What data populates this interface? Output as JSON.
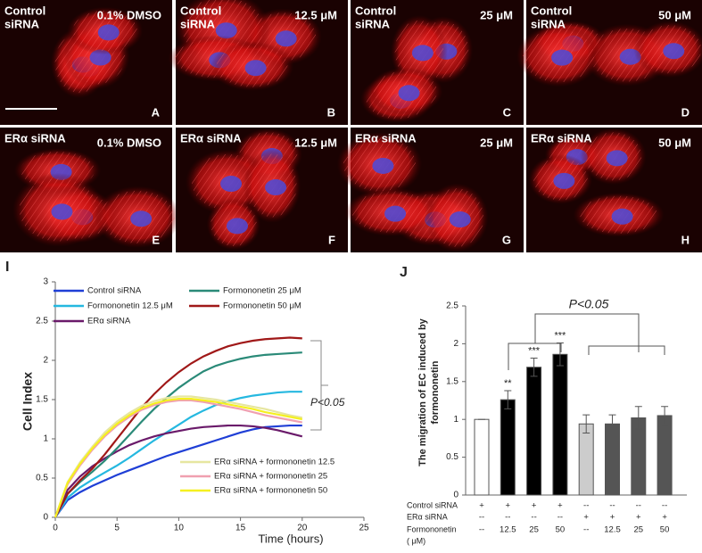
{
  "micrographs": [
    {
      "treatment": [
        "Control",
        "siRNA"
      ],
      "condition": "0.1% DMSO",
      "letter": "A"
    },
    {
      "treatment": [
        "Control",
        "siRNA"
      ],
      "condition": "12.5 μM",
      "letter": "B"
    },
    {
      "treatment": [
        "Control",
        "siRNA"
      ],
      "condition": "25 μM",
      "letter": "C"
    },
    {
      "treatment": [
        "Control",
        "siRNA"
      ],
      "condition": "50 μM",
      "letter": "D"
    },
    {
      "treatment": [
        "ERα siRNA"
      ],
      "condition": "0.1% DMSO",
      "letter": "E"
    },
    {
      "treatment": [
        "ERα siRNA"
      ],
      "condition": "12.5 μM",
      "letter": "F"
    },
    {
      "treatment": [
        "ERα siRNA"
      ],
      "condition": "25 μM",
      "letter": "G"
    },
    {
      "treatment": [
        "ERα siRNA"
      ],
      "condition": "50 μM",
      "letter": "H"
    }
  ],
  "chart_data": [
    {
      "type": "line",
      "panel": "I",
      "x_label": "Time (hours)",
      "y_label": "Cell Index",
      "annotation": "P<0.05",
      "x": [
        0,
        1,
        2,
        3,
        4,
        5,
        6,
        7,
        8,
        9,
        10,
        11,
        12,
        13,
        14,
        15,
        16,
        17,
        18,
        19,
        20
      ],
      "xlim": [
        0,
        25
      ],
      "xticks": [
        0,
        5,
        10,
        15,
        20,
        25
      ],
      "ylim": [
        0,
        3
      ],
      "yticks": [
        0,
        0.5,
        1,
        1.5,
        2,
        2.5,
        3
      ],
      "series": [
        {
          "name": "Control siRNA",
          "color": "#1f3fd6",
          "values": [
            0,
            0.22,
            0.32,
            0.4,
            0.47,
            0.54,
            0.6,
            0.66,
            0.72,
            0.78,
            0.83,
            0.88,
            0.93,
            0.98,
            1.03,
            1.08,
            1.12,
            1.15,
            1.16,
            1.17,
            1.17
          ]
        },
        {
          "name": "Formononetin 12.5  μM",
          "color": "#25b8e0",
          "values": [
            0,
            0.25,
            0.38,
            0.48,
            0.57,
            0.66,
            0.76,
            0.87,
            0.98,
            1.08,
            1.18,
            1.28,
            1.36,
            1.43,
            1.48,
            1.52,
            1.55,
            1.57,
            1.59,
            1.6,
            1.6
          ]
        },
        {
          "name": "ERα siRNA",
          "color": "#6a1a6a",
          "values": [
            0,
            0.35,
            0.52,
            0.65,
            0.75,
            0.84,
            0.92,
            0.98,
            1.03,
            1.07,
            1.1,
            1.13,
            1.15,
            1.16,
            1.17,
            1.17,
            1.16,
            1.14,
            1.11,
            1.07,
            1.03
          ]
        },
        {
          "name": "Formononetin 25  μM",
          "color": "#2a8a78",
          "values": [
            0,
            0.3,
            0.45,
            0.58,
            0.72,
            0.88,
            1.05,
            1.22,
            1.38,
            1.52,
            1.65,
            1.76,
            1.86,
            1.93,
            1.98,
            2.02,
            2.05,
            2.07,
            2.08,
            2.09,
            2.1
          ]
        },
        {
          "name": "Formononetin 50  μM",
          "color": "#a01818",
          "values": [
            0,
            0.3,
            0.47,
            0.62,
            0.8,
            1.0,
            1.2,
            1.4,
            1.57,
            1.72,
            1.85,
            1.96,
            2.05,
            2.12,
            2.18,
            2.22,
            2.25,
            2.27,
            2.28,
            2.29,
            2.28
          ]
        },
        {
          "name": "ERα siRNA + formononetin 12.5",
          "color": "#e6e6a0",
          "values": [
            0,
            0.45,
            0.7,
            0.9,
            1.08,
            1.22,
            1.33,
            1.42,
            1.48,
            1.52,
            1.54,
            1.54,
            1.52,
            1.5,
            1.47,
            1.44,
            1.41,
            1.38,
            1.34,
            1.3,
            1.27
          ]
        },
        {
          "name": "ERα siRNA + formononetin 25",
          "color": "#f0a0b0",
          "values": [
            0,
            0.42,
            0.66,
            0.86,
            1.03,
            1.17,
            1.28,
            1.37,
            1.43,
            1.47,
            1.49,
            1.49,
            1.47,
            1.44,
            1.41,
            1.38,
            1.34,
            1.3,
            1.27,
            1.24,
            1.21
          ]
        },
        {
          "name": "ERα siRNA + formononetin 50",
          "color": "#f5f020",
          "values": [
            0,
            0.44,
            0.68,
            0.88,
            1.05,
            1.19,
            1.3,
            1.39,
            1.45,
            1.49,
            1.51,
            1.51,
            1.49,
            1.47,
            1.44,
            1.41,
            1.38,
            1.34,
            1.31,
            1.28,
            1.25
          ]
        }
      ]
    },
    {
      "type": "bar",
      "panel": "J",
      "y_label": [
        "The migration of EC induced by",
        "formononetin"
      ],
      "annotation": "P<0.05",
      "values": [
        1,
        1.26,
        1.69,
        1.86,
        0.94,
        0.94,
        1.02,
        1.05
      ],
      "errors": [
        0,
        0.12,
        0.12,
        0.15,
        0.12,
        0.12,
        0.15,
        0.12
      ],
      "colors": [
        "#ffffff",
        "#000000",
        "#000000",
        "#000000",
        "#cccccc",
        "#555555",
        "#555555",
        "#555555"
      ],
      "significance": [
        null,
        "**",
        "***",
        "***",
        null,
        null,
        null,
        null
      ],
      "ylim": [
        0,
        2.5
      ],
      "yticks": [
        0,
        0.5,
        1,
        1.5,
        2,
        2.5
      ],
      "conditions": [
        {
          "label": [
            "Control siRNA"
          ],
          "cells": [
            "+",
            "+",
            "+",
            "+",
            "--",
            "--",
            "--",
            "--"
          ]
        },
        {
          "label": [
            "ERα siRNA"
          ],
          "cells": [
            "--",
            "--",
            "--",
            "--",
            "+",
            "+",
            "+",
            "+"
          ]
        },
        {
          "label": [
            "Formononetin",
            "( μM)"
          ],
          "cells": [
            "--",
            "12.5",
            "25",
            "50",
            "--",
            "12.5",
            "25",
            "50"
          ]
        }
      ]
    }
  ]
}
